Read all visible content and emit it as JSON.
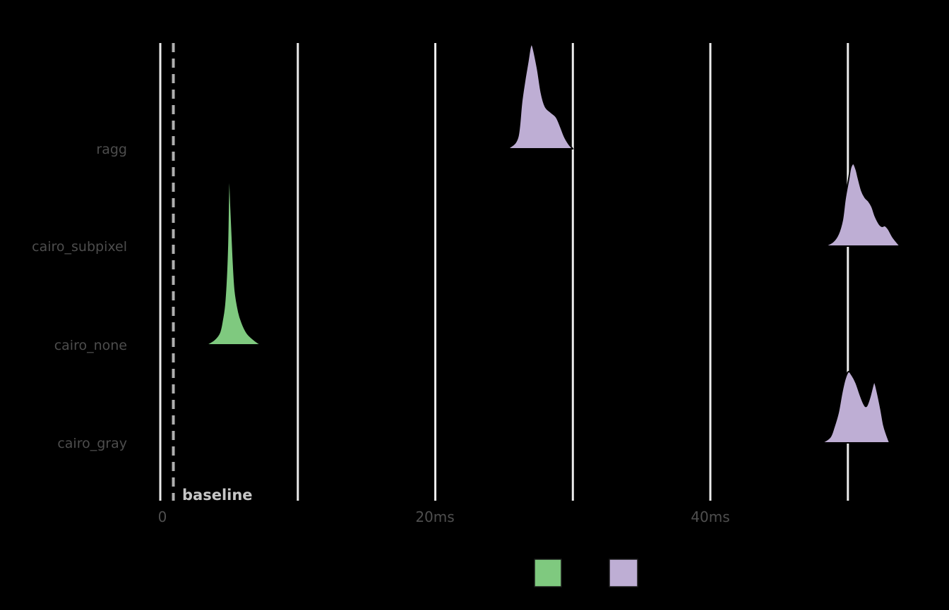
{
  "chart_data": {
    "type": "area",
    "subtype": "ridgeline_density",
    "title": "",
    "x_axis": {
      "unit": "ms",
      "tick_labels": [
        "0",
        "20ms",
        "40ms"
      ],
      "tick_values_ms": [
        0,
        20,
        40
      ],
      "gridline_values_ms": [
        0,
        10,
        20,
        30,
        40,
        50
      ],
      "range_ms": [
        0,
        57.5
      ],
      "grid": "on"
    },
    "categories": [
      "ragg",
      "cairo_subpixel",
      "cairo_none",
      "cairo_gray"
    ],
    "annotation": {
      "label": "baseline",
      "x_ms": 0.95,
      "style": "dashed-vertical-line"
    },
    "colors": {
      "green": "#7FC97F",
      "purple": "#BEAED4",
      "outline": "#000000",
      "gridline": "#ebebeb",
      "dashed_line": "#b0b0b0",
      "axis_text": "#4f4f4f",
      "annotation_text": "#c6c6c6",
      "background": "#000000"
    },
    "height_units": "px_density_scale",
    "series": [
      {
        "category": "ragg",
        "fill": "purple",
        "peak_ms": 27.0,
        "range_ms": [
          25.0,
          30.0
        ],
        "points": [
          [
            25.0,
            0
          ],
          [
            25.4,
            2
          ],
          [
            26.0,
            17
          ],
          [
            26.3,
            70
          ],
          [
            26.7,
            120
          ],
          [
            27.0,
            148
          ],
          [
            27.4,
            117
          ],
          [
            27.7,
            80
          ],
          [
            28.0,
            60
          ],
          [
            28.4,
            52
          ],
          [
            28.8,
            45
          ],
          [
            29.1,
            32
          ],
          [
            29.4,
            17
          ],
          [
            29.7,
            7
          ],
          [
            30.0,
            0
          ]
        ]
      },
      {
        "category": "cairo_subpixel",
        "fill": "purple",
        "peak_ms": 50.4,
        "range_ms": [
          48.3,
          53.8
        ],
        "points": [
          [
            48.3,
            0
          ],
          [
            48.9,
            6
          ],
          [
            49.3,
            17
          ],
          [
            49.6,
            37
          ],
          [
            49.8,
            67
          ],
          [
            50.05,
            94
          ],
          [
            50.2,
            111
          ],
          [
            50.4,
            117
          ],
          [
            50.6,
            109
          ],
          [
            50.75,
            97
          ],
          [
            51.0,
            79
          ],
          [
            51.25,
            69
          ],
          [
            51.5,
            64
          ],
          [
            51.75,
            56
          ],
          [
            52.0,
            42
          ],
          [
            52.3,
            31
          ],
          [
            52.5,
            28
          ],
          [
            52.7,
            29
          ],
          [
            52.95,
            24
          ],
          [
            53.3,
            12
          ],
          [
            53.8,
            0
          ]
        ]
      },
      {
        "category": "cairo_none",
        "fill": "green",
        "peak_ms": 5.0,
        "range_ms": [
          3.3,
          7.4
        ],
        "points": [
          [
            3.3,
            0
          ],
          [
            3.9,
            7
          ],
          [
            4.3,
            17
          ],
          [
            4.5,
            34
          ],
          [
            4.7,
            64
          ],
          [
            4.88,
            137
          ],
          [
            5.0,
            246
          ],
          [
            5.15,
            191
          ],
          [
            5.3,
            124
          ],
          [
            5.45,
            77
          ],
          [
            5.7,
            47
          ],
          [
            5.95,
            31
          ],
          [
            6.3,
            17
          ],
          [
            6.7,
            9
          ],
          [
            7.1,
            3
          ],
          [
            7.4,
            0
          ]
        ]
      },
      {
        "category": "cairo_gray",
        "fill": "purple",
        "peak_ms": 50.05,
        "range_ms": [
          48.1,
          53.05
        ],
        "points": [
          [
            48.1,
            0
          ],
          [
            48.7,
            8
          ],
          [
            49.0,
            23
          ],
          [
            49.3,
            43
          ],
          [
            49.55,
            70
          ],
          [
            49.8,
            91
          ],
          [
            50.05,
            101
          ],
          [
            50.3,
            96
          ],
          [
            50.6,
            85
          ],
          [
            50.9,
            68
          ],
          [
            51.15,
            56
          ],
          [
            51.35,
            52
          ],
          [
            51.6,
            65
          ],
          [
            51.85,
            84
          ],
          [
            51.95,
            86
          ],
          [
            52.1,
            76
          ],
          [
            52.4,
            48
          ],
          [
            52.6,
            26
          ],
          [
            52.8,
            13
          ],
          [
            53.05,
            0
          ]
        ]
      }
    ],
    "legend": {
      "position": "bottom",
      "swatches": [
        {
          "name": "green-swatch",
          "color": "#7FC97F"
        },
        {
          "name": "purple-swatch",
          "color": "#BEAED4"
        }
      ]
    }
  }
}
